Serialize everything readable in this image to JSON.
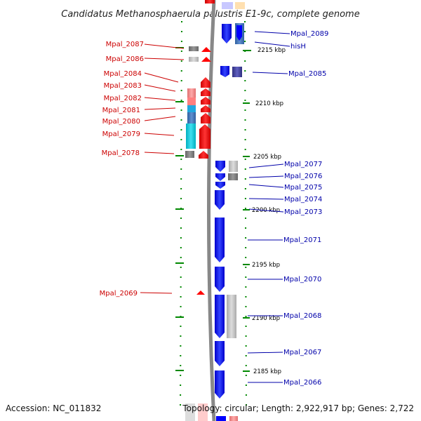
{
  "title": "Candidatus Methanosphaerula palustris E1-9c, complete genome",
  "footer": {
    "accession": "Accession: NC_011832",
    "topology": "Topology: circular; Length: 2,922,917 bp; Genes: 2,722"
  },
  "colors": {
    "forward": "#ff0000",
    "reverse": "#0000ff",
    "backbone": "#888888",
    "tick": "#008800",
    "label_red": "#cc0000",
    "label_blue": "#0000aa"
  },
  "kbp_labels": [
    "2215 kbp",
    "2210 kbp",
    "2205 kbp",
    "2200 kbp",
    "2195 kbp",
    "2190 kbp",
    "2185 kbp"
  ],
  "left_genes": [
    "Mpal_2087",
    "Mpal_2086",
    "Mpal_2084",
    "Mpal_2083",
    "Mpal_2082",
    "Mpal_2081",
    "Mpal_2080",
    "Mpal_2079",
    "Mpal_2078",
    "Mpal_2069"
  ],
  "right_genes": [
    "Mpal_2089",
    "hisH",
    "Mpal_2085",
    "Mpal_2077",
    "Mpal_2076",
    "Mpal_2075",
    "Mpal_2074",
    "Mpal_2073",
    "Mpal_2071",
    "Mpal_2070",
    "Mpal_2068",
    "Mpal_2067",
    "Mpal_2066"
  ]
}
